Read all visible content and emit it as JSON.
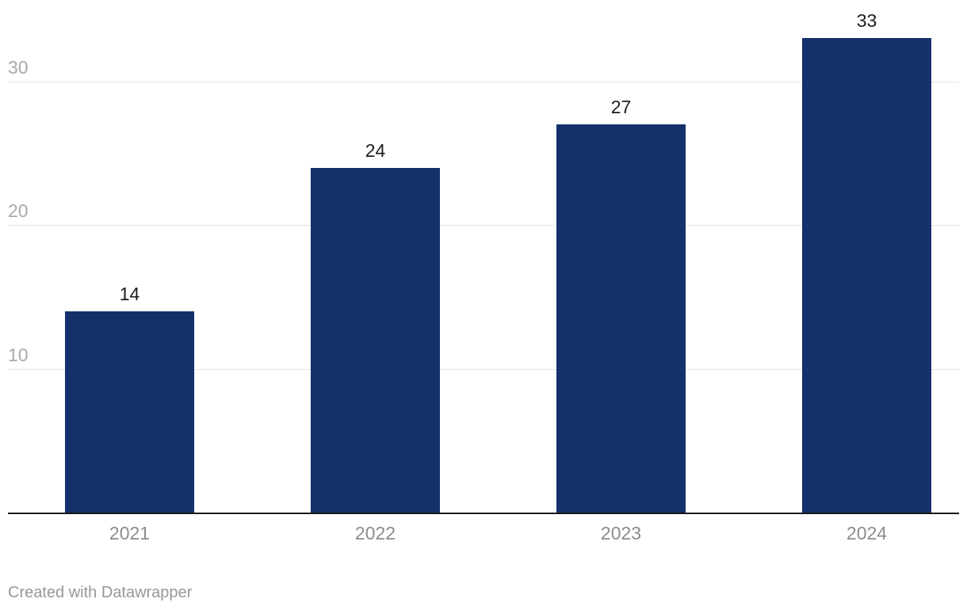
{
  "chart_data": {
    "type": "bar",
    "categories": [
      "2021",
      "2022",
      "2023",
      "2024"
    ],
    "values": [
      14,
      24,
      27,
      33
    ],
    "value_labels": [
      "14",
      "24",
      "27",
      "33"
    ],
    "title": "",
    "xlabel": "",
    "ylabel": "",
    "ylim": [
      0,
      35
    ],
    "yticks": [
      10,
      20,
      30
    ],
    "ytick_labels": [
      "10",
      "20",
      "30"
    ],
    "grid": true,
    "legend": "none",
    "colors": {
      "bar": "#14316B",
      "gridline": "#e4e4e4",
      "axis_line": "#1a1a1a",
      "tick_label": "#a9a9a9",
      "category_label": "#8c8c8c",
      "value_label": "#1d1d1d",
      "background": "#ffffff",
      "credit_text": "#979797"
    }
  },
  "footer": {
    "credit": "Created with Datawrapper"
  }
}
